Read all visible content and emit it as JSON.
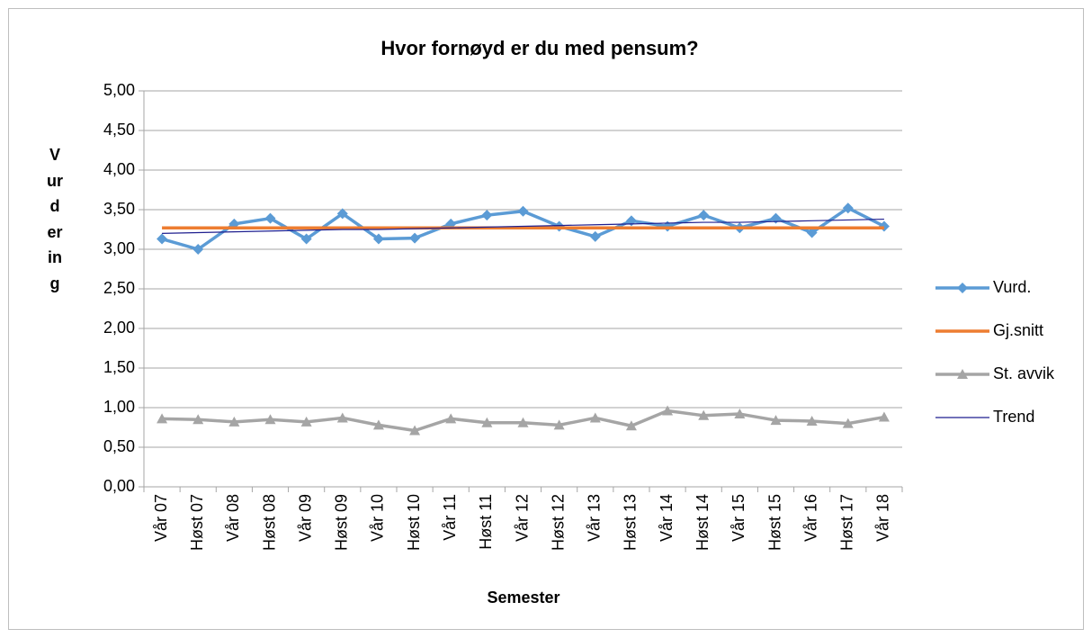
{
  "chart_data": {
    "type": "line",
    "title": "Hvor fornøyd er du med pensum?",
    "x_label": "Semester",
    "y_label": "Vurdering",
    "categories": [
      "Vår 07",
      "Høst 07",
      "Vår 08",
      "Høst 08",
      "Vår 09",
      "Høst 09",
      "Vår 10",
      "Høst 10",
      "Vår 11",
      "Høst 11",
      "Vår 12",
      "Høst 12",
      "Vår 13",
      "Høst 13",
      "Vår 14",
      "Høst 14",
      "Vår 15",
      "Høst 15",
      "Vår 16",
      "Høst 17",
      "Vår 18"
    ],
    "series": [
      {
        "name": "Vurd.",
        "color": "#5b9bd5",
        "marker": "diamond",
        "values": [
          3.13,
          3.0,
          3.32,
          3.39,
          3.13,
          3.45,
          3.13,
          3.14,
          3.32,
          3.43,
          3.48,
          3.29,
          3.16,
          3.36,
          3.29,
          3.43,
          3.27,
          3.39,
          3.21,
          3.52,
          3.29
        ]
      },
      {
        "name": "Gj.snitt",
        "color": "#ed7d31",
        "marker": "none",
        "values": [
          3.27,
          3.27,
          3.27,
          3.27,
          3.27,
          3.27,
          3.27,
          3.27,
          3.27,
          3.27,
          3.27,
          3.27,
          3.27,
          3.27,
          3.27,
          3.27,
          3.27,
          3.27,
          3.27,
          3.27,
          3.27
        ]
      },
      {
        "name": "St. avvik",
        "color": "#a5a5a5",
        "marker": "triangle",
        "values": [
          0.86,
          0.85,
          0.82,
          0.85,
          0.82,
          0.87,
          0.78,
          0.71,
          0.86,
          0.81,
          0.81,
          0.78,
          0.87,
          0.77,
          0.96,
          0.9,
          0.92,
          0.84,
          0.83,
          0.8,
          0.88
        ]
      },
      {
        "name": "Trend",
        "color": "#1f1f8f",
        "marker": "none",
        "values": [
          3.2,
          3.21,
          3.22,
          3.23,
          3.24,
          3.25,
          3.25,
          3.26,
          3.27,
          3.28,
          3.29,
          3.3,
          3.31,
          3.32,
          3.33,
          3.34,
          3.34,
          3.35,
          3.36,
          3.37,
          3.38
        ]
      }
    ],
    "ylim": [
      0,
      5
    ],
    "yticks": [
      {
        "value": 0,
        "label": "0,00"
      },
      {
        "value": 0.5,
        "label": "0,50"
      },
      {
        "value": 1,
        "label": "1,00"
      },
      {
        "value": 1.5,
        "label": "1,50"
      },
      {
        "value": 2,
        "label": "2,00"
      },
      {
        "value": 2.5,
        "label": "2,50"
      },
      {
        "value": 3,
        "label": "3,00"
      },
      {
        "value": 3.5,
        "label": "3,50"
      },
      {
        "value": 4,
        "label": "4,00"
      },
      {
        "value": 4.5,
        "label": "4,50"
      },
      {
        "value": 5,
        "label": "5,00"
      }
    ],
    "grid": true,
    "legend": "right"
  }
}
